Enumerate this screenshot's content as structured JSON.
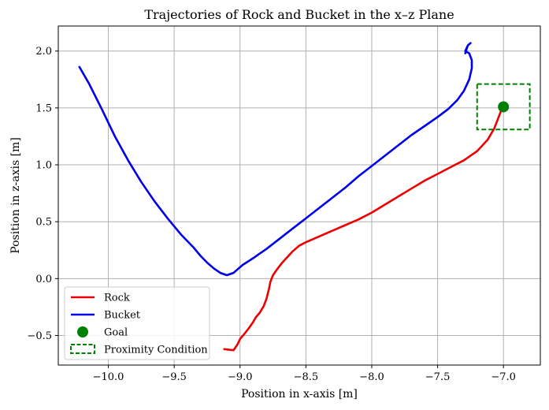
{
  "chart_data": {
    "type": "line",
    "title": "Trajectories of Rock and Bucket in the x–z Plane",
    "xlabel": "Position in x-axis [m]",
    "ylabel": "Position in z-axis [m]",
    "xlim": [
      -10.38,
      -6.72
    ],
    "ylim": [
      -0.76,
      2.22
    ],
    "xticks": [
      -10.0,
      -9.5,
      -9.0,
      -8.5,
      -8.0,
      -7.5,
      -7.0
    ],
    "xtick_labels": [
      "−10.0",
      "−9.5",
      "−9.0",
      "−8.5",
      "−8.0",
      "−7.5",
      "−7.0"
    ],
    "yticks": [
      -0.5,
      0.0,
      0.5,
      1.0,
      1.5,
      2.0
    ],
    "ytick_labels": [
      "−0.5",
      "0.0",
      "0.5",
      "1.0",
      "1.5",
      "2.0"
    ],
    "grid": true,
    "legend_position": "lower-left",
    "colors": {
      "rock": "#ee0000",
      "bucket": "#0000ee",
      "goal": "#008000",
      "proximity": "#008000"
    },
    "series": [
      {
        "name": "Rock",
        "type": "line",
        "points": [
          [
            -9.12,
            -0.62
          ],
          [
            -9.05,
            -0.63
          ],
          [
            -9.02,
            -0.58
          ],
          [
            -9.0,
            -0.53
          ],
          [
            -8.97,
            -0.49
          ],
          [
            -8.93,
            -0.43
          ],
          [
            -8.9,
            -0.38
          ],
          [
            -8.88,
            -0.34
          ],
          [
            -8.85,
            -0.3
          ],
          [
            -8.82,
            -0.24
          ],
          [
            -8.8,
            -0.18
          ],
          [
            -8.78,
            -0.09
          ],
          [
            -8.77,
            -0.03
          ],
          [
            -8.75,
            0.03
          ],
          [
            -8.72,
            0.08
          ],
          [
            -8.68,
            0.14
          ],
          [
            -8.64,
            0.19
          ],
          [
            -8.6,
            0.24
          ],
          [
            -8.55,
            0.29
          ],
          [
            -8.5,
            0.32
          ],
          [
            -8.4,
            0.37
          ],
          [
            -8.3,
            0.42
          ],
          [
            -8.2,
            0.47
          ],
          [
            -8.1,
            0.52
          ],
          [
            -8.0,
            0.58
          ],
          [
            -7.9,
            0.65
          ],
          [
            -7.8,
            0.72
          ],
          [
            -7.7,
            0.79
          ],
          [
            -7.6,
            0.86
          ],
          [
            -7.5,
            0.92
          ],
          [
            -7.4,
            0.98
          ],
          [
            -7.3,
            1.04
          ],
          [
            -7.2,
            1.12
          ],
          [
            -7.12,
            1.22
          ],
          [
            -7.07,
            1.32
          ],
          [
            -7.03,
            1.44
          ],
          [
            -7.01,
            1.5
          ]
        ]
      },
      {
        "name": "Bucket",
        "type": "line",
        "points": [
          [
            -10.22,
            1.86
          ],
          [
            -10.15,
            1.72
          ],
          [
            -10.05,
            1.49
          ],
          [
            -9.95,
            1.25
          ],
          [
            -9.85,
            1.04
          ],
          [
            -9.75,
            0.85
          ],
          [
            -9.65,
            0.68
          ],
          [
            -9.55,
            0.53
          ],
          [
            -9.45,
            0.39
          ],
          [
            -9.35,
            0.27
          ],
          [
            -9.3,
            0.2
          ],
          [
            -9.25,
            0.14
          ],
          [
            -9.2,
            0.09
          ],
          [
            -9.15,
            0.05
          ],
          [
            -9.1,
            0.03
          ],
          [
            -9.05,
            0.05
          ],
          [
            -9.02,
            0.08
          ],
          [
            -8.98,
            0.12
          ],
          [
            -8.9,
            0.18
          ],
          [
            -8.85,
            0.22
          ],
          [
            -8.8,
            0.26
          ],
          [
            -8.7,
            0.35
          ],
          [
            -8.6,
            0.44
          ],
          [
            -8.5,
            0.53
          ],
          [
            -8.4,
            0.62
          ],
          [
            -8.3,
            0.71
          ],
          [
            -8.2,
            0.8
          ],
          [
            -8.1,
            0.9
          ],
          [
            -8.0,
            0.99
          ],
          [
            -7.9,
            1.08
          ],
          [
            -7.8,
            1.17
          ],
          [
            -7.7,
            1.26
          ],
          [
            -7.6,
            1.34
          ],
          [
            -7.5,
            1.42
          ],
          [
            -7.42,
            1.49
          ],
          [
            -7.35,
            1.57
          ],
          [
            -7.3,
            1.65
          ],
          [
            -7.26,
            1.75
          ],
          [
            -7.24,
            1.85
          ],
          [
            -7.24,
            1.92
          ],
          [
            -7.26,
            1.98
          ],
          [
            -7.29,
            2.0
          ],
          [
            -7.27,
            2.05
          ],
          [
            -7.25,
            2.07
          ],
          [
            -7.27,
            2.05
          ],
          [
            -7.29,
            1.98
          ]
        ]
      },
      {
        "name": "Goal",
        "type": "scatter",
        "points": [
          [
            -7.0,
            1.51
          ]
        ]
      },
      {
        "name": "Proximity Condition",
        "type": "rect",
        "x_range": [
          -7.2,
          -6.8
        ],
        "y_range": [
          1.31,
          1.71
        ]
      }
    ]
  }
}
